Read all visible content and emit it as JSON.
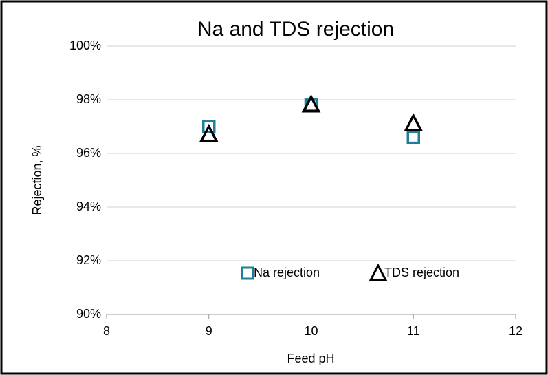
{
  "chart_data": {
    "type": "scatter",
    "title": "Na and TDS rejection",
    "x_label": "Feed pH",
    "y_label": "Rejection, %",
    "xlim": [
      8,
      12
    ],
    "xticks": [
      8,
      9,
      10,
      11,
      12
    ],
    "ylim": [
      90,
      100
    ],
    "yticks": [
      {
        "value": 90,
        "label": "90%"
      },
      {
        "value": 92,
        "label": "92%"
      },
      {
        "value": 94,
        "label": "94%"
      },
      {
        "value": 96,
        "label": "96%"
      },
      {
        "value": 98,
        "label": "98%"
      },
      {
        "value": 100,
        "label": "100%"
      }
    ],
    "grid": true,
    "legend": "bottom",
    "series": [
      {
        "name": "Na rejection",
        "color": "#1f7f9a",
        "marker": "square",
        "x": [
          9,
          10,
          11
        ],
        "values": [
          97.0,
          97.8,
          96.6
        ]
      },
      {
        "name": "TDS rejection",
        "color": "#000000",
        "marker": "triangle",
        "x": [
          9,
          10,
          11
        ],
        "values": [
          96.7,
          97.8,
          97.1
        ]
      }
    ]
  }
}
